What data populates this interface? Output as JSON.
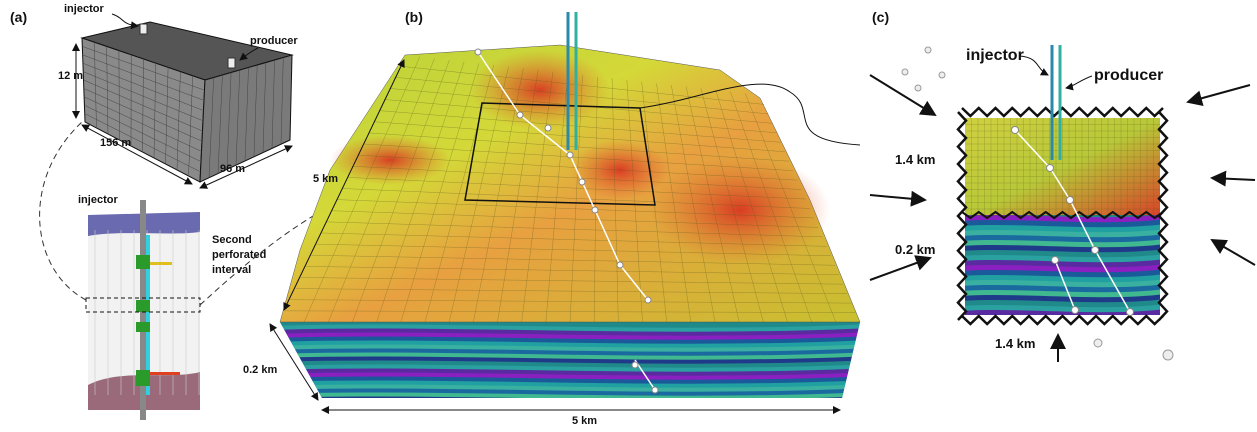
{
  "panels": [
    {
      "label": "(a)",
      "annotations": [
        "injector",
        "producer",
        "12 m",
        "156 m",
        "96 m",
        "injector"
      ],
      "note_lines": [
        "Second",
        "perforated",
        "interval"
      ]
    },
    {
      "label": "(b)",
      "annotations": [
        "5 km",
        "0.2 km",
        "5 km"
      ]
    },
    {
      "label": "(c)",
      "annotations": [
        "injector",
        "producer",
        "1.4 km",
        "0.2 km",
        "1.4 km"
      ]
    }
  ]
}
